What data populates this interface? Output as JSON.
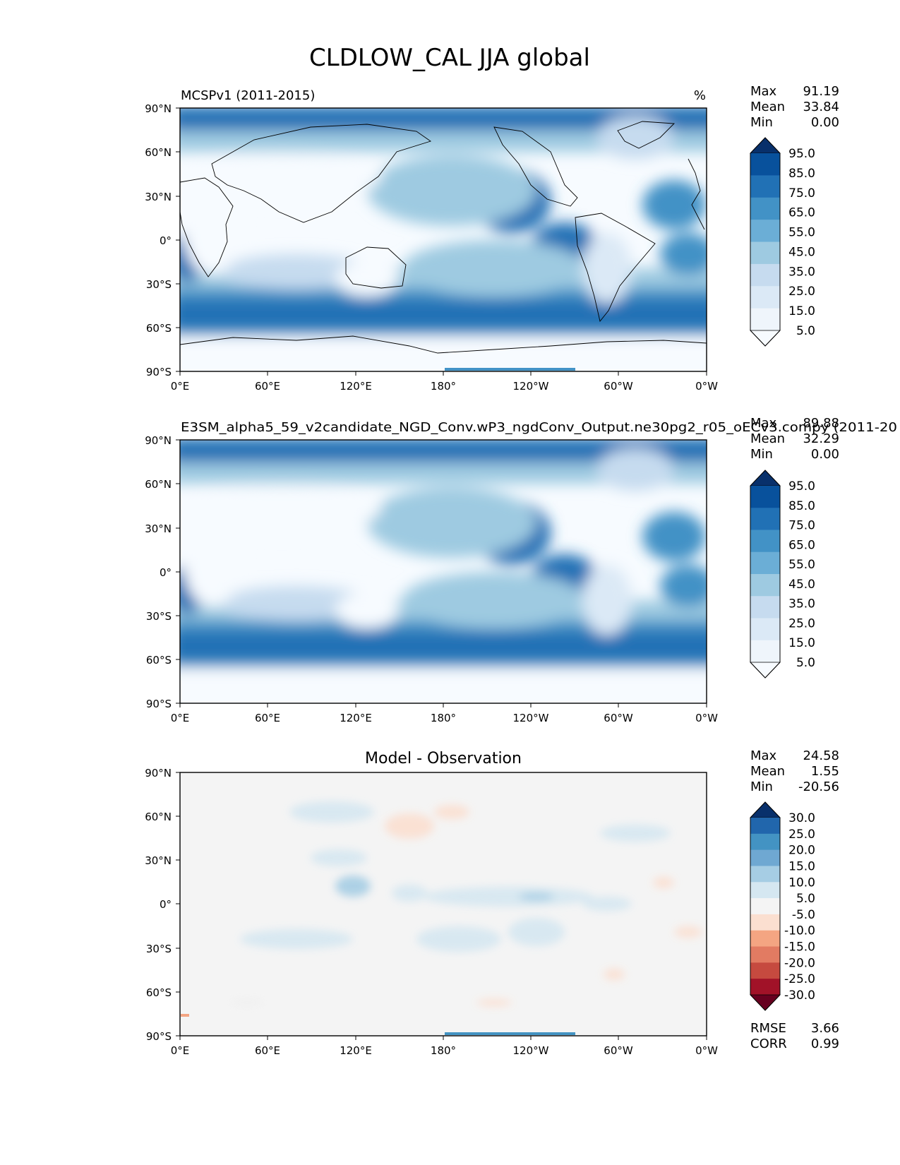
{
  "figure": {
    "title": "CLDLOW_CAL JJA global"
  },
  "axes": {
    "lat_ticks": [
      "90°N",
      "60°N",
      "30°N",
      "0°",
      "30°S",
      "60°S",
      "90°S"
    ],
    "lon_ticks": [
      "0°E",
      "60°E",
      "120°E",
      "180°",
      "120°W",
      "60°W",
      "0°W"
    ]
  },
  "panels": [
    {
      "name": "test",
      "left_title": "MCSPv1 (2011-2015)",
      "center_title": "",
      "units": "%",
      "stats": {
        "max_label": "Max",
        "max": "91.19",
        "mean_label": "Mean",
        "mean": "33.84",
        "min_label": "Min",
        "min": "0.00"
      },
      "colorbar": {
        "levels": [
          "95.0",
          "85.0",
          "75.0",
          "65.0",
          "55.0",
          "45.0",
          "35.0",
          "25.0",
          "15.0",
          "5.0"
        ],
        "colors": [
          "#08306b",
          "#08519c",
          "#2171b5",
          "#4292c6",
          "#6baed6",
          "#9ecae1",
          "#c6dbef",
          "#dbe9f6",
          "#eff5fb",
          "#f7fbff"
        ]
      }
    },
    {
      "name": "reference",
      "left_title": "E3SM_alpha5_59_v2candidate_NGD_Conv.wP3_ngdConv_Output.ne30pg2_r05_oECv3.compy (2011-20",
      "center_title": "",
      "units": "%",
      "stats": {
        "max_label": "Max",
        "max": "89.88",
        "mean_label": "Mean",
        "mean": "32.29",
        "min_label": "Min",
        "min": "0.00"
      },
      "colorbar": {
        "levels": [
          "95.0",
          "85.0",
          "75.0",
          "65.0",
          "55.0",
          "45.0",
          "35.0",
          "25.0",
          "15.0",
          "5.0"
        ],
        "colors": [
          "#08306b",
          "#08519c",
          "#2171b5",
          "#4292c6",
          "#6baed6",
          "#9ecae1",
          "#c6dbef",
          "#dbe9f6",
          "#eff5fb",
          "#f7fbff"
        ]
      }
    },
    {
      "name": "difference",
      "left_title": "",
      "center_title": "Model - Observation",
      "units": "",
      "stats": {
        "max_label": "Max",
        "max": "24.58",
        "mean_label": "Mean",
        "mean": "1.55",
        "min_label": "Min",
        "min": "-20.56"
      },
      "colorbar": {
        "levels": [
          "30.0",
          "25.0",
          "20.0",
          "15.0",
          "10.0",
          "5.0",
          "-5.0",
          "-10.0",
          "-15.0",
          "-20.0",
          "-25.0",
          "-30.0"
        ],
        "colors": [
          "#08306b",
          "#2166ac",
          "#4393c3",
          "#6fa8d2",
          "#a6cde4",
          "#d5e7f1",
          "#f4f4f4",
          "#fbdfd0",
          "#f4a582",
          "#e27b62",
          "#c64a3f",
          "#a11228",
          "#67001f"
        ]
      },
      "metrics": {
        "rmse_label": "RMSE",
        "rmse": "3.66",
        "corr_label": "CORR",
        "corr": "0.99"
      }
    }
  ],
  "chart_data": [
    {
      "type": "heatmap",
      "title": "MCSPv1 (2011-2015)",
      "variable": "CLDLOW_CAL",
      "season": "JJA",
      "units": "%",
      "xlim": [
        0,
        360
      ],
      "ylim": [
        -90,
        90
      ],
      "max": 91.19,
      "mean": 33.84,
      "min": 0.0,
      "contour_levels": [
        5,
        15,
        25,
        35,
        45,
        55,
        65,
        75,
        85,
        95
      ]
    },
    {
      "type": "heatmap",
      "title": "E3SM_alpha5_59_v2candidate_NGD_Conv.wP3_ngdConv_Output.ne30pg2_r05_oECv3.compy",
      "variable": "CLDLOW_CAL",
      "season": "JJA",
      "units": "%",
      "xlim": [
        0,
        360
      ],
      "ylim": [
        -90,
        90
      ],
      "max": 89.88,
      "mean": 32.29,
      "min": 0.0,
      "contour_levels": [
        5,
        15,
        25,
        35,
        45,
        55,
        65,
        75,
        85,
        95
      ]
    },
    {
      "type": "heatmap",
      "title": "Model - Observation",
      "variable": "CLDLOW_CAL",
      "season": "JJA",
      "xlim": [
        0,
        360
      ],
      "ylim": [
        -90,
        90
      ],
      "max": 24.58,
      "mean": 1.55,
      "min": -20.56,
      "rmse": 3.66,
      "corr": 0.99,
      "contour_levels": [
        -30,
        -25,
        -20,
        -15,
        -10,
        -5,
        5,
        10,
        15,
        20,
        25,
        30
      ]
    }
  ]
}
